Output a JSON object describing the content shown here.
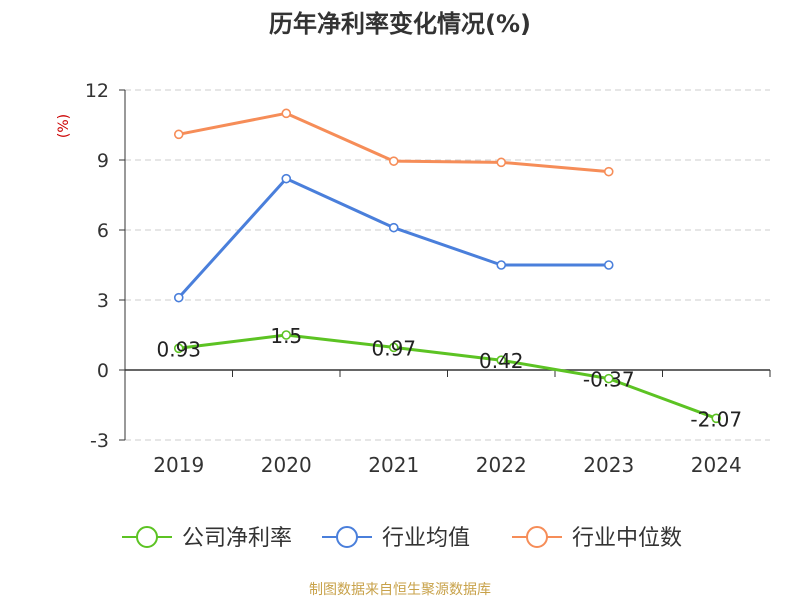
{
  "chart_data": {
    "type": "line",
    "title": "历年净利率变化情况(%)",
    "ylabel": "(%)",
    "categories": [
      "2019",
      "2020",
      "2021",
      "2022",
      "2023",
      "2024"
    ],
    "ylim": [
      -3,
      12
    ],
    "yticks": [
      "12",
      "9",
      "6",
      "3",
      "0",
      "-3"
    ],
    "ytick_values": [
      12,
      9,
      6,
      3,
      0,
      -3
    ],
    "grid": true,
    "legend_position": "bottom",
    "series": [
      {
        "name": "公司净利率",
        "color": "#5cc323",
        "values": [
          0.93,
          1.5,
          0.97,
          0.42,
          -0.37,
          -2.07
        ],
        "labels": [
          "0.93",
          "1.5",
          "0.97",
          "0.42",
          "-0.37",
          "-2.07"
        ]
      },
      {
        "name": "行业均值",
        "color": "#4a7fdb",
        "values": [
          3.1,
          8.2,
          6.1,
          4.5,
          4.5,
          null
        ]
      },
      {
        "name": "行业中位数",
        "color": "#f68d58",
        "values": [
          10.1,
          11.0,
          8.95,
          8.9,
          8.5,
          null
        ]
      }
    ],
    "source_note": "制图数据来自恒生聚源数据库"
  }
}
